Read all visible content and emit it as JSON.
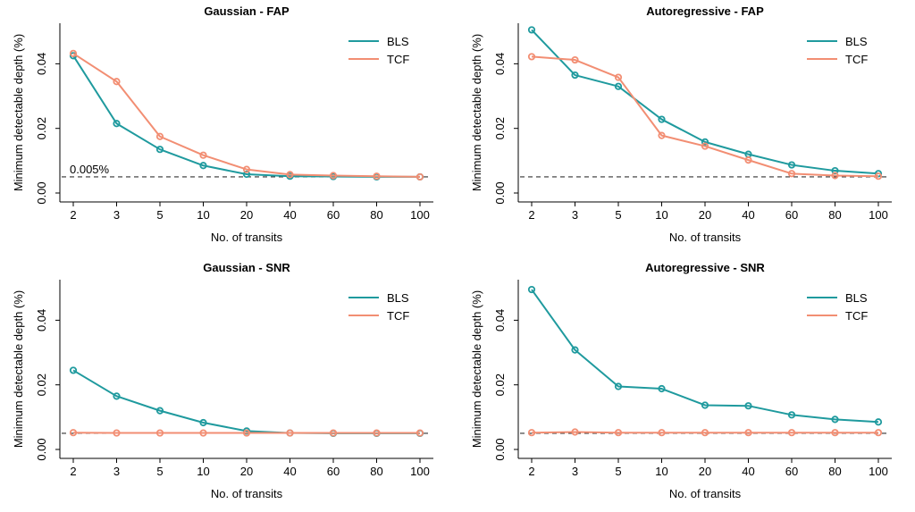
{
  "chart_data": [
    {
      "type": "line",
      "title": "Gaussian - FAP",
      "xlabel": "No. of transits",
      "ylabel": "Minimum detectable depth (%)",
      "categories": [
        "2",
        "3",
        "5",
        "10",
        "20",
        "40",
        "60",
        "80",
        "100"
      ],
      "yticks": [
        "0.00",
        "0.02",
        "0.04"
      ],
      "ylim": [
        0,
        0.052
      ],
      "reference_line": {
        "value": 0.005,
        "style": "dashed",
        "label": "0.005%"
      },
      "legend": {
        "position": "top-right"
      },
      "series": [
        {
          "name": "BLS",
          "color": "#1f9a9e",
          "values": [
            0.0425,
            0.0215,
            0.0135,
            0.0085,
            0.0058,
            0.0052,
            0.0051,
            0.005,
            0.005
          ]
        },
        {
          "name": "TCF",
          "color": "#f28e73",
          "values": [
            0.0432,
            0.0345,
            0.0175,
            0.0117,
            0.0073,
            0.0057,
            0.0054,
            0.0052,
            0.005
          ]
        }
      ]
    },
    {
      "type": "line",
      "title": "Autoregressive - FAP",
      "xlabel": "No. of transits",
      "ylabel": "Minimum detectable depth (%)",
      "categories": [
        "2",
        "3",
        "5",
        "10",
        "20",
        "40",
        "60",
        "80",
        "100"
      ],
      "yticks": [
        "0.00",
        "0.02",
        "0.04"
      ],
      "ylim": [
        0,
        0.052
      ],
      "reference_line": {
        "value": 0.005,
        "style": "dashed"
      },
      "legend": {
        "position": "top-right"
      },
      "series": [
        {
          "name": "BLS",
          "color": "#1f9a9e",
          "values": [
            0.0505,
            0.0365,
            0.033,
            0.0228,
            0.0158,
            0.012,
            0.0087,
            0.0069,
            0.006
          ]
        },
        {
          "name": "TCF",
          "color": "#f28e73",
          "values": [
            0.0422,
            0.0412,
            0.0358,
            0.0178,
            0.0145,
            0.0102,
            0.006,
            0.0054,
            0.0052
          ]
        }
      ]
    },
    {
      "type": "line",
      "title": "Gaussian - SNR",
      "xlabel": "No. of transits",
      "ylabel": "Minimum detectable depth (%)",
      "categories": [
        "2",
        "3",
        "5",
        "10",
        "20",
        "40",
        "60",
        "80",
        "100"
      ],
      "yticks": [
        "0.00",
        "0.02",
        "0.04"
      ],
      "ylim": [
        0,
        0.052
      ],
      "reference_line": {
        "value": 0.005,
        "style": "dashed"
      },
      "legend": {
        "position": "top-right"
      },
      "series": [
        {
          "name": "BLS",
          "color": "#1f9a9e",
          "values": [
            0.0245,
            0.0165,
            0.012,
            0.0083,
            0.0057,
            0.0051,
            0.005,
            0.005,
            0.005
          ]
        },
        {
          "name": "TCF",
          "color": "#f28e73",
          "values": [
            0.0052,
            0.0051,
            0.0051,
            0.0051,
            0.0051,
            0.0051,
            0.0051,
            0.0051,
            0.0051
          ]
        }
      ]
    },
    {
      "type": "line",
      "title": "Autoregressive - SNR",
      "xlabel": "No. of transits",
      "ylabel": "Minimum detectable depth (%)",
      "categories": [
        "2",
        "3",
        "5",
        "10",
        "20",
        "40",
        "60",
        "80",
        "100"
      ],
      "yticks": [
        "0.00",
        "0.02",
        "0.04"
      ],
      "ylim": [
        0,
        0.052
      ],
      "reference_line": {
        "value": 0.005,
        "style": "dashed"
      },
      "legend": {
        "position": "top-right"
      },
      "series": [
        {
          "name": "BLS",
          "color": "#1f9a9e",
          "values": [
            0.0495,
            0.0308,
            0.0195,
            0.0188,
            0.0137,
            0.0135,
            0.0107,
            0.0093,
            0.0085
          ]
        },
        {
          "name": "TCF",
          "color": "#f28e73",
          "values": [
            0.0052,
            0.0054,
            0.0052,
            0.0052,
            0.0052,
            0.0052,
            0.0052,
            0.0052,
            0.0052
          ]
        }
      ]
    }
  ]
}
